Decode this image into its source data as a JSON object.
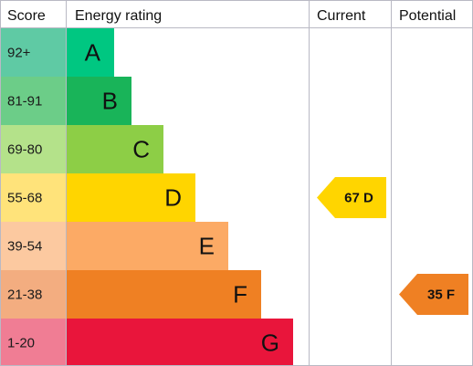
{
  "headers": {
    "score": "Score",
    "rating": "Energy rating",
    "current": "Current",
    "potential": "Potential"
  },
  "chart_data": {
    "type": "bar",
    "title": "",
    "categories": [
      "A",
      "B",
      "C",
      "D",
      "E",
      "F",
      "G"
    ],
    "score_ranges": [
      "92+",
      "81-91",
      "69-80",
      "55-68",
      "39-54",
      "21-38",
      "1-20"
    ],
    "band_colors": [
      "#00c781",
      "#19b459",
      "#8dce46",
      "#ffd500",
      "#fcaa65",
      "#ef8023",
      "#e9153b"
    ],
    "score_cell_colors": [
      "#5fcaa4",
      "#6ccd88",
      "#b4e28a",
      "#ffe37a",
      "#fcc9a0",
      "#f3ad80",
      "#f07d94"
    ],
    "current": {
      "value": 67,
      "band": "D",
      "label": "67 D",
      "color": "#ffd500"
    },
    "potential": {
      "value": 35,
      "band": "F",
      "label": "35 F",
      "color": "#ef8023"
    }
  }
}
